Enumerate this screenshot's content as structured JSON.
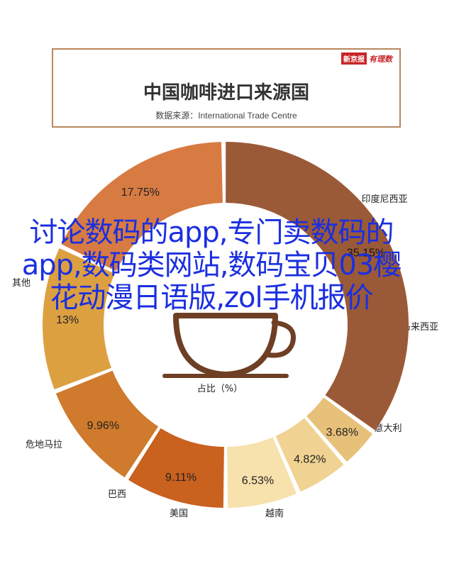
{
  "header": {
    "brand_box": "新京报",
    "brand_text": "有理数",
    "title": "中国咖啡进口来源国",
    "source": "数据来源：International Trade Centre"
  },
  "overlay": {
    "text": "讨论数码的app,专门卖数码的app,数码类网站,数码宝贝03樱花动漫日语版,zol手机报价"
  },
  "chart_data": {
    "type": "pie",
    "style": "donut",
    "center_label": "占比（%）",
    "series": [
      {
        "label": "越南",
        "value": 9.11,
        "value_text": "9.11%",
        "color": "#c9611f"
      },
      {
        "label": "意大利",
        "value": 9.96,
        "value_text": "9.96%",
        "color": "#cf7a2c"
      },
      {
        "label": "马来西亚",
        "value": 13,
        "value_text": "13%",
        "color": "#dca041"
      },
      {
        "label": "印度尼西亚",
        "value": 17.75,
        "value_text": "17.75%",
        "color": "#d77b42"
      },
      {
        "label": "其他",
        "value": 35.15,
        "value_text": "35.15%",
        "color": "#9b5a37"
      },
      {
        "label": "危地马拉",
        "value": 3.68,
        "value_text": "3.68%",
        "color": "#e7c079"
      },
      {
        "label": "巴西",
        "value": 4.82,
        "value_text": "4.82%",
        "color": "#f0d392"
      },
      {
        "label": "美国",
        "value": 6.53,
        "value_text": "6.53%",
        "color": "#f7e1ac"
      }
    ],
    "partial_labels": {
      "other_name": "其他",
      "other_value": "35.15%"
    }
  }
}
